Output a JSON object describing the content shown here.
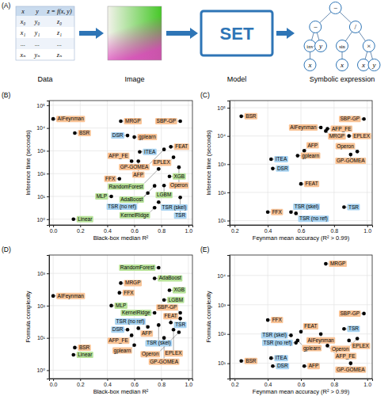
{
  "diagram": {
    "title": "(A)",
    "table": {
      "header": [
        "x",
        "y",
        "z = f(x, y)"
      ],
      "rows": [
        [
          "x₀",
          "y₀",
          "z₀"
        ],
        [
          "x₁",
          "y₁",
          "z₁"
        ],
        [
          "...",
          "...",
          "..."
        ],
        [
          "xₙ",
          "yₙ",
          "zₙ"
        ]
      ]
    },
    "captions": [
      "Data",
      "Image",
      "Model",
      "Symbolic expression"
    ],
    "model": "SET",
    "tree": {
      "label": "−",
      "children": [
        {
          "label": "−",
          "children": [
            {
              "label": "inv",
              "children": [
                {
                  "label": "x"
                }
              ]
            },
            {
              "label": "y"
            }
          ]
        },
        {
          "label": "/",
          "children": [
            {
              "label": "sin",
              "children": [
                {
                  "label": "x"
                }
              ]
            },
            {
              "label": "×",
              "children": [
                {
                  "label": "x"
                },
                {
                  "label": "y"
                }
              ]
            }
          ]
        }
      ]
    }
  },
  "chart_data": [
    {
      "type": "scatter",
      "title": "(B)",
      "x_label": "Black-box median R²",
      "y_label": "Inference time (seconds)",
      "log": "y",
      "grid": true,
      "marker": "circle",
      "color": "#000000",
      "xlim": [
        -0.03,
        1.03
      ],
      "xticks": [
        {
          "value": 0,
          "label": "0.0"
        },
        0.2,
        0.4,
        0.6,
        0.8,
        {
          "value": 1,
          "label": "1.0"
        }
      ],
      "ylim": [
        0.56,
        160000
      ],
      "yticks": [
        {
          "value": 1,
          "label": "10⁰"
        },
        {
          "value": 10,
          "label": "10¹"
        },
        {
          "value": 100,
          "label": "10²"
        },
        {
          "value": 1000,
          "label": "10³"
        },
        {
          "value": 10000,
          "label": "10⁴"
        },
        {
          "value": 100000,
          "label": "10⁵"
        }
      ],
      "labels": [
        "AIFeynman",
        "BSR",
        "MRGP",
        "SBP-GP",
        "DSR",
        "gplearn",
        "GP-GOMEA",
        "ITEA",
        "FEAT",
        "AFP_FE",
        "AFP",
        "EPLEX",
        "Operon",
        "RandomForest",
        "FFX",
        "XGB",
        "AdaBoost",
        "LGBM",
        "MLP",
        "TSR (no ref)",
        "TSR (skel)",
        "TSR",
        "KernelRidge",
        "Linear"
      ],
      "x": [
        0.0,
        0.16,
        0.5,
        0.94,
        0.55,
        0.6,
        0.82,
        0.64,
        0.87,
        0.58,
        0.63,
        0.89,
        0.93,
        0.78,
        0.49,
        0.86,
        0.75,
        0.82,
        0.43,
        0.7,
        0.78,
        0.94,
        0.75,
        0.15
      ],
      "values": [
        25000,
        6000,
        20000,
        20000,
        4700,
        4000,
        1150,
        900,
        1500,
        350,
        350,
        520,
        190,
        160,
        59,
        75,
        29,
        30,
        10,
        14,
        5.6,
        9,
        3.2,
        1
      ],
      "colors": [
        "#f9c396",
        "#f9c396",
        "#f9c396",
        "#f9c396",
        "#a9d4f2",
        "#f9c396",
        "#f9c396",
        "#a9d4f2",
        "#f9c396",
        "#f9c396",
        "#f9c396",
        "#f9c396",
        "#f9c396",
        "#b9e39a",
        "#f9c396",
        "#b9e39a",
        "#b9e39a",
        "#b9e39a",
        "#b9e39a",
        "#a9d4f2",
        "#a9d4f2",
        "#a9d4f2",
        "#b9e39a",
        "#b9e39a"
      ]
    },
    {
      "type": "scatter",
      "title": "(C)",
      "x_label": "Feynman mean accuracy (R² > 0.99)",
      "y_label": "Inference time (seconds)",
      "log": "y",
      "grid": true,
      "marker": "circle",
      "color": "#000000",
      "xlim": [
        0.17,
        1.03
      ],
      "xticks": [
        0.2,
        0.4,
        0.6,
        0.8,
        {
          "value": 1,
          "label": "1.0"
        }
      ],
      "ylim": [
        7,
        180000
      ],
      "yticks": [
        {
          "value": 10,
          "label": "10¹"
        },
        {
          "value": 100,
          "label": "10²"
        },
        {
          "value": 1000,
          "label": "10³"
        },
        {
          "value": 10000,
          "label": "10⁴"
        },
        {
          "value": 100000,
          "label": "10⁵"
        }
      ],
      "labels": [
        "BSR",
        "AIFeynman",
        "AFP_FE",
        "MRGP",
        "SBP-GP",
        "EPLEX",
        "gplearn",
        "AFP",
        "ITEA",
        "DSR",
        "FEAT",
        "GP-GOMEA",
        "Operon",
        "FFX",
        "TSR",
        "TSR (skel)",
        "TSR (no ref)"
      ],
      "x": [
        0.24,
        0.72,
        0.76,
        0.75,
        0.98,
        0.89,
        0.58,
        0.62,
        0.42,
        0.43,
        0.6,
        0.9,
        0.94,
        0.4,
        0.86,
        0.54,
        0.57
      ],
      "values": [
        50000,
        20000,
        18000,
        15000,
        40000,
        10000,
        2000,
        3000,
        1500,
        700,
        200,
        2200,
        2800,
        20,
        30,
        20,
        18
      ],
      "colors": [
        "#f9c396",
        "#f9c396",
        "#f9c396",
        "#f9c396",
        "#f9c396",
        "#f9c396",
        "#f9c396",
        "#f9c396",
        "#a9d4f2",
        "#a9d4f2",
        "#f9c396",
        "#f9c396",
        "#f9c396",
        "#f9c396",
        "#a9d4f2",
        "#a9d4f2",
        "#a9d4f2"
      ]
    },
    {
      "type": "scatter",
      "title": "(D)",
      "x_label": "Black-box median R²",
      "y_label": "Formula complexity",
      "log": "y",
      "grid": true,
      "marker": "circle",
      "color": "#000000",
      "xlim": [
        -0.03,
        1.03
      ],
      "xticks": [
        {
          "value": 0,
          "label": "0.0"
        },
        0.2,
        0.4,
        0.6,
        0.8,
        {
          "value": 1,
          "label": "1.0"
        }
      ],
      "ylim": [
        0.55,
        3700
      ],
      "yticks": [
        {
          "value": 1,
          "label": "10⁰"
        },
        {
          "value": 10,
          "label": "10¹"
        },
        {
          "value": 100,
          "label": "10²"
        },
        {
          "value": 1000,
          "label": "10³"
        }
      ],
      "labels": [
        "RandomForest",
        "AdaBoost",
        "AIFeynman",
        "MRGP",
        "XGB",
        "FFX",
        "LGBM",
        "MLP",
        "KernelRidge",
        "SBP-GP",
        "TSR",
        "TSR (skel)",
        "TSR (no ref)",
        "FEAT",
        "DSR",
        "AFP",
        "EPLEX",
        "Operon",
        "AFP_FE",
        "GP-GOMEA",
        "gplearn",
        "BSR",
        "Linear"
      ],
      "x": [
        0.78,
        0.75,
        0.0,
        0.5,
        0.86,
        0.49,
        0.82,
        0.43,
        0.75,
        0.94,
        0.94,
        0.78,
        0.7,
        0.87,
        0.55,
        0.63,
        0.89,
        0.93,
        0.58,
        0.82,
        0.6,
        0.16,
        0.15
      ],
      "values": [
        1500,
        700,
        200,
        500,
        300,
        250,
        150,
        100,
        60,
        60,
        40,
        25,
        22,
        30,
        18,
        20,
        18,
        15,
        12,
        10,
        6,
        5,
        3
      ],
      "colors": [
        "#b9e39a",
        "#b9e39a",
        "#f9c396",
        "#f9c396",
        "#b9e39a",
        "#f9c396",
        "#b9e39a",
        "#b9e39a",
        "#b9e39a",
        "#f9c396",
        "#a9d4f2",
        "#a9d4f2",
        "#a9d4f2",
        "#f9c396",
        "#a9d4f2",
        "#f9c396",
        "#f9c396",
        "#f9c396",
        "#f9c396",
        "#f9c396",
        "#f9c396",
        "#f9c396",
        "#b9e39a"
      ]
    },
    {
      "type": "scatter",
      "title": "(E)",
      "x_label": "Feynman mean accuracy (R² > 0.99)",
      "y_label": "Formula complexity",
      "log": "y",
      "grid": true,
      "marker": "circle",
      "color": "#000000",
      "xlim": [
        0.17,
        1.03
      ],
      "xticks": [
        0.2,
        0.4,
        0.6,
        0.8,
        {
          "value": 1,
          "label": "1.0"
        }
      ],
      "ylim": [
        3,
        50000
      ],
      "yticks": [
        {
          "value": 10,
          "label": "10¹"
        },
        {
          "value": 100,
          "label": "10²"
        },
        {
          "value": 1000,
          "label": "10³"
        },
        {
          "value": 10000,
          "label": "10⁴"
        }
      ],
      "labels": [
        "MRGP",
        "SBP-GP",
        "FFX",
        "TSR",
        "FEAT",
        "AIFeynman",
        "TSR (skel)",
        "TSR (no ref)",
        "gplearn",
        "EPLEX",
        "Operon",
        "AFP_FE",
        "BSR",
        "ITEA",
        "DSR",
        "AFP",
        "GP-GOMEA"
      ],
      "x": [
        0.75,
        0.98,
        0.4,
        0.86,
        0.6,
        0.72,
        0.54,
        0.57,
        0.58,
        0.89,
        0.94,
        0.76,
        0.24,
        0.42,
        0.43,
        0.62,
        0.9
      ],
      "values": [
        25000,
        500,
        300,
        150,
        120,
        100,
        90,
        50,
        60,
        60,
        70,
        40,
        12,
        15,
        8,
        8,
        10
      ],
      "colors": [
        "#f9c396",
        "#f9c396",
        "#f9c396",
        "#a9d4f2",
        "#f9c396",
        "#f9c396",
        "#a9d4f2",
        "#a9d4f2",
        "#f9c396",
        "#f9c396",
        "#f9c396",
        "#f9c396",
        "#f9c396",
        "#a9d4f2",
        "#a9d4f2",
        "#f9c396",
        "#f9c396"
      ]
    }
  ]
}
